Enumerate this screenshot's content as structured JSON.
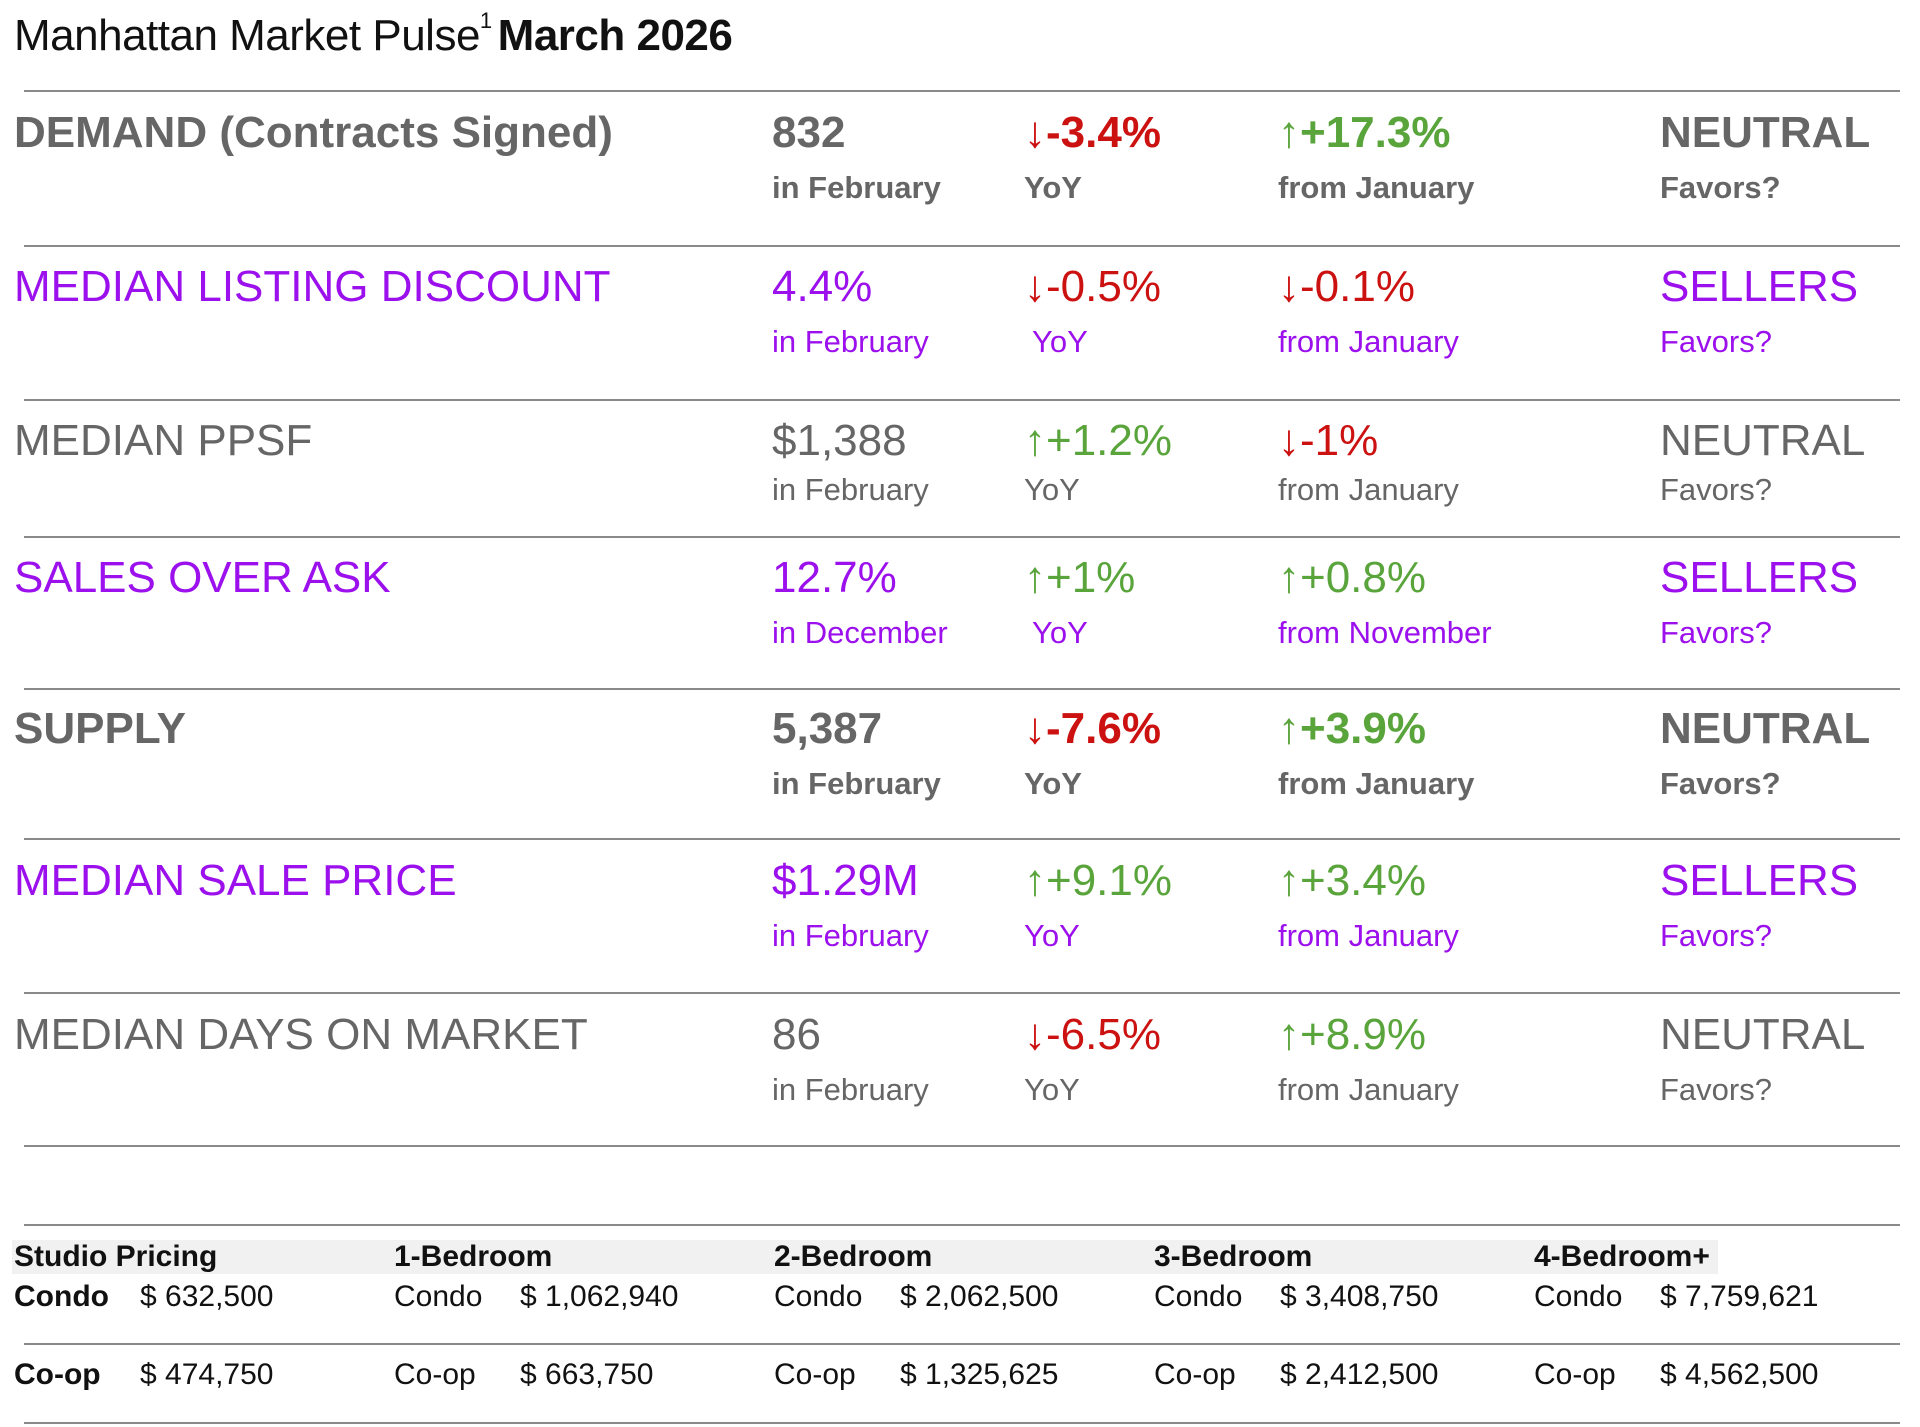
{
  "header": {
    "title_main": "Manhattan Market Pulse",
    "footnote": "1",
    "title_date": "March 2026"
  },
  "metrics": [
    {
      "label": "DEMAND (Contracts Signed)",
      "value": "832",
      "period": "in February",
      "yoy": "-3.4%",
      "yoy_dir": "↓",
      "yoy_label": "YoY",
      "mom": "+17.3%",
      "mom_dir": "↑",
      "mom_label": "from January",
      "favors": "NEUTRAL",
      "favors_label": "Favors?"
    },
    {
      "label": "MEDIAN LISTING DISCOUNT",
      "value": "4.4%",
      "period": "in February",
      "yoy": "-0.5%",
      "yoy_dir": "↓",
      "yoy_label": "YoY",
      "mom": "-0.1%",
      "mom_dir": "↓",
      "mom_label": "from January",
      "favors": "SELLERS",
      "favors_label": "Favors?"
    },
    {
      "label": "MEDIAN PPSF",
      "value": "$1,388",
      "period": "in February",
      "yoy": "+1.2%",
      "yoy_dir": "↑",
      "yoy_label": "YoY",
      "mom": "-1%",
      "mom_dir": "↓",
      "mom_label": "from January",
      "favors": "NEUTRAL",
      "favors_label": "Favors?"
    },
    {
      "label": "SALES OVER ASK",
      "value": "12.7%",
      "period": "in December",
      "yoy": "+1%",
      "yoy_dir": "↑",
      "yoy_label": "YoY",
      "mom": "+0.8%",
      "mom_dir": "↑",
      "mom_label": "from November",
      "favors": "SELLERS",
      "favors_label": "Favors?"
    },
    {
      "label": "SUPPLY",
      "value": "5,387",
      "period": "in February",
      "yoy": "-7.6%",
      "yoy_dir": "↓",
      "yoy_label": "YoY",
      "mom": "+3.9%",
      "mom_dir": "↑",
      "mom_label": "from January",
      "favors": "NEUTRAL",
      "favors_label": "Favors?"
    },
    {
      "label": "MEDIAN SALE PRICE",
      "value": "$1.29M",
      "period": "in February",
      "yoy": "+9.1%",
      "yoy_dir": "↑",
      "yoy_label": "YoY",
      "mom": "+3.4%",
      "mom_dir": "↑",
      "mom_label": "from January",
      "favors": "SELLERS",
      "favors_label": "Favors?"
    },
    {
      "label": "MEDIAN DAYS ON MARKET",
      "value": "86",
      "period": "in February",
      "yoy": "-6.5%",
      "yoy_dir": "↓",
      "yoy_label": "YoY",
      "mom": "+8.9%",
      "mom_dir": "↑",
      "mom_label": "from January",
      "favors": "NEUTRAL",
      "favors_label": "Favors?"
    }
  ],
  "pricing": {
    "columns": [
      {
        "header": "Studio Pricing",
        "condo_label": "Condo",
        "condo_price": "$ 632,500",
        "coop_label": "Co-op",
        "coop_price": "$ 474,750"
      },
      {
        "header": "1-Bedroom",
        "condo_label": "Condo",
        "condo_price": "$ 1,062,940",
        "coop_label": "Co-op",
        "coop_price": "$ 663,750"
      },
      {
        "header": "2-Bedroom",
        "condo_label": "Condo",
        "condo_price": "$ 2,062,500",
        "coop_label": "Co-op",
        "coop_price": "$ 1,325,625"
      },
      {
        "header": "3-Bedroom",
        "condo_label": "Condo",
        "condo_price": "$ 3,408,750",
        "coop_label": "Co-op",
        "coop_price": "$ 2,412,500"
      },
      {
        "header": "4-Bedroom+",
        "condo_label": "Condo",
        "condo_price": "$ 7,759,621",
        "coop_label": "Co-op",
        "coop_price": "$ 4,562,500"
      }
    ]
  },
  "colors": {
    "gray": "#666666",
    "purple": "#9b10ec",
    "red": "#cc1111",
    "green": "#5aa43c",
    "rule": "#8a8a8a"
  }
}
